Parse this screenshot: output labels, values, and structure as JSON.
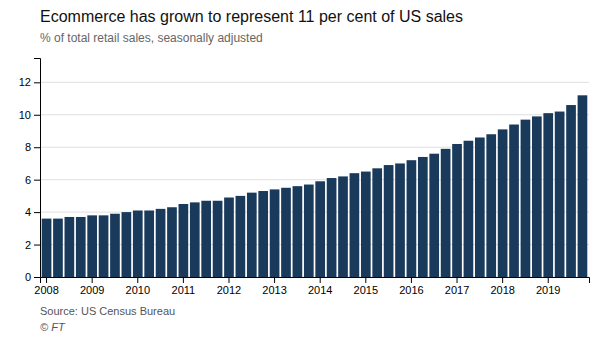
{
  "chart_data": {
    "type": "bar",
    "title": "Ecommerce has grown to represent 11 per cent of US sales",
    "subtitle": "% of total retail sales, seasonally adjusted",
    "annotations": [
      "Source: US Census Bureau",
      "© FT"
    ],
    "color": "#1a3a5c",
    "categories": [
      "2008",
      null,
      null,
      null,
      "2009",
      null,
      null,
      null,
      "2010",
      null,
      null,
      null,
      "2011",
      null,
      null,
      null,
      "2012",
      null,
      null,
      null,
      "2013",
      null,
      null,
      null,
      "2014",
      null,
      null,
      null,
      "2015",
      null,
      null,
      null,
      "2016",
      null,
      null,
      null,
      "2017",
      null,
      null,
      null,
      "2018",
      null,
      null,
      null,
      "2019",
      null,
      null,
      null
    ],
    "values": [
      3.6,
      3.6,
      3.7,
      3.7,
      3.8,
      3.8,
      3.9,
      4.0,
      4.1,
      4.1,
      4.2,
      4.3,
      4.5,
      4.6,
      4.7,
      4.7,
      4.9,
      5.0,
      5.2,
      5.3,
      5.4,
      5.5,
      5.6,
      5.7,
      5.9,
      6.1,
      6.2,
      6.4,
      6.5,
      6.7,
      6.9,
      7.0,
      7.2,
      7.4,
      7.6,
      7.9,
      8.2,
      8.4,
      8.6,
      8.8,
      9.1,
      9.4,
      9.7,
      9.9,
      10.1,
      10.2,
      10.6,
      11.2
    ],
    "ylim": [
      0,
      13.5
    ],
    "yticks": [
      0,
      2,
      4,
      6,
      8,
      10,
      12
    ],
    "grid": true
  }
}
